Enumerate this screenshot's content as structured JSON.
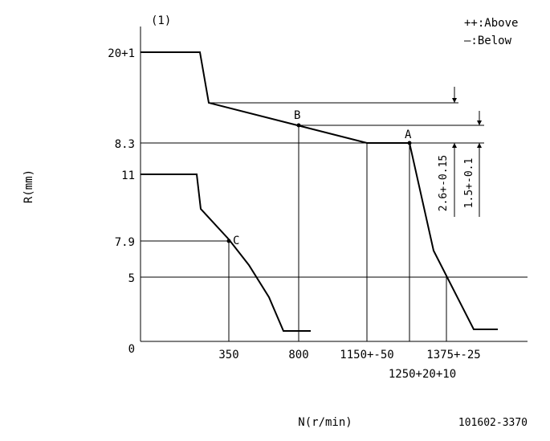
{
  "figure_label": "(1)",
  "legend": {
    "above": "++:Above",
    "below": "—:Below"
  },
  "y_axis": {
    "title": "R(mm)",
    "ticks": [
      "20+1",
      "8.3",
      "11",
      "7.9",
      "5",
      "0"
    ]
  },
  "x_axis": {
    "title": "N(r/min)",
    "ticks": [
      "350",
      "800",
      "1150+-50",
      "1375+-25",
      "1250+20+10"
    ]
  },
  "points": {
    "a": "A",
    "b": "B",
    "c": "C"
  },
  "dims": {
    "d1": "2.6+-0.15",
    "d2": "1.5+-0.1"
  },
  "part_number": "101602-3370"
}
